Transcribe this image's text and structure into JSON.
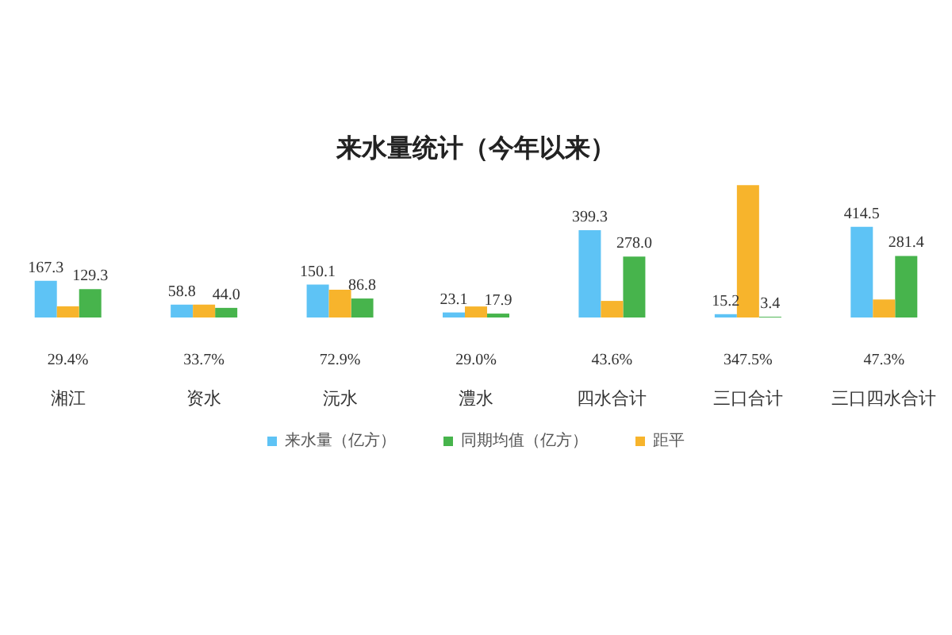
{
  "chart_data": {
    "type": "bar",
    "title": "来水量统计（今年以来）",
    "categories": [
      "湘江",
      "资水",
      "沅水",
      "澧水",
      "四水合计",
      "三口合计",
      "三口四水合计"
    ],
    "series": [
      {
        "name": "来水量（亿方）",
        "color": "#5ec3f5",
        "values": [
          167.3,
          58.8,
          150.1,
          23.1,
          399.3,
          15.2,
          414.5
        ],
        "value_labels": [
          "167.3",
          "58.8",
          "150.1",
          "23.1",
          "399.3",
          "15.2",
          "414.5"
        ]
      },
      {
        "name": "同期均值（亿方）",
        "color": "#47b44c",
        "values": [
          129.3,
          44.0,
          86.8,
          17.9,
          278.0,
          3.4,
          281.4
        ],
        "value_labels": [
          "129.3",
          "44.0",
          "86.8",
          "17.9",
          "278.0",
          "3.4",
          "281.4"
        ]
      },
      {
        "name": "距平",
        "color": "#f7b42c",
        "axis": "y2",
        "values": [
          29.4,
          33.7,
          72.9,
          29.0,
          43.6,
          347.5,
          47.3
        ],
        "value_labels": [
          "29.4%",
          "33.7%",
          "72.9%",
          "29.0%",
          "43.6%",
          "347.5%",
          "47.3%"
        ]
      }
    ],
    "legend": "bottom",
    "tick_labels": "x"
  }
}
